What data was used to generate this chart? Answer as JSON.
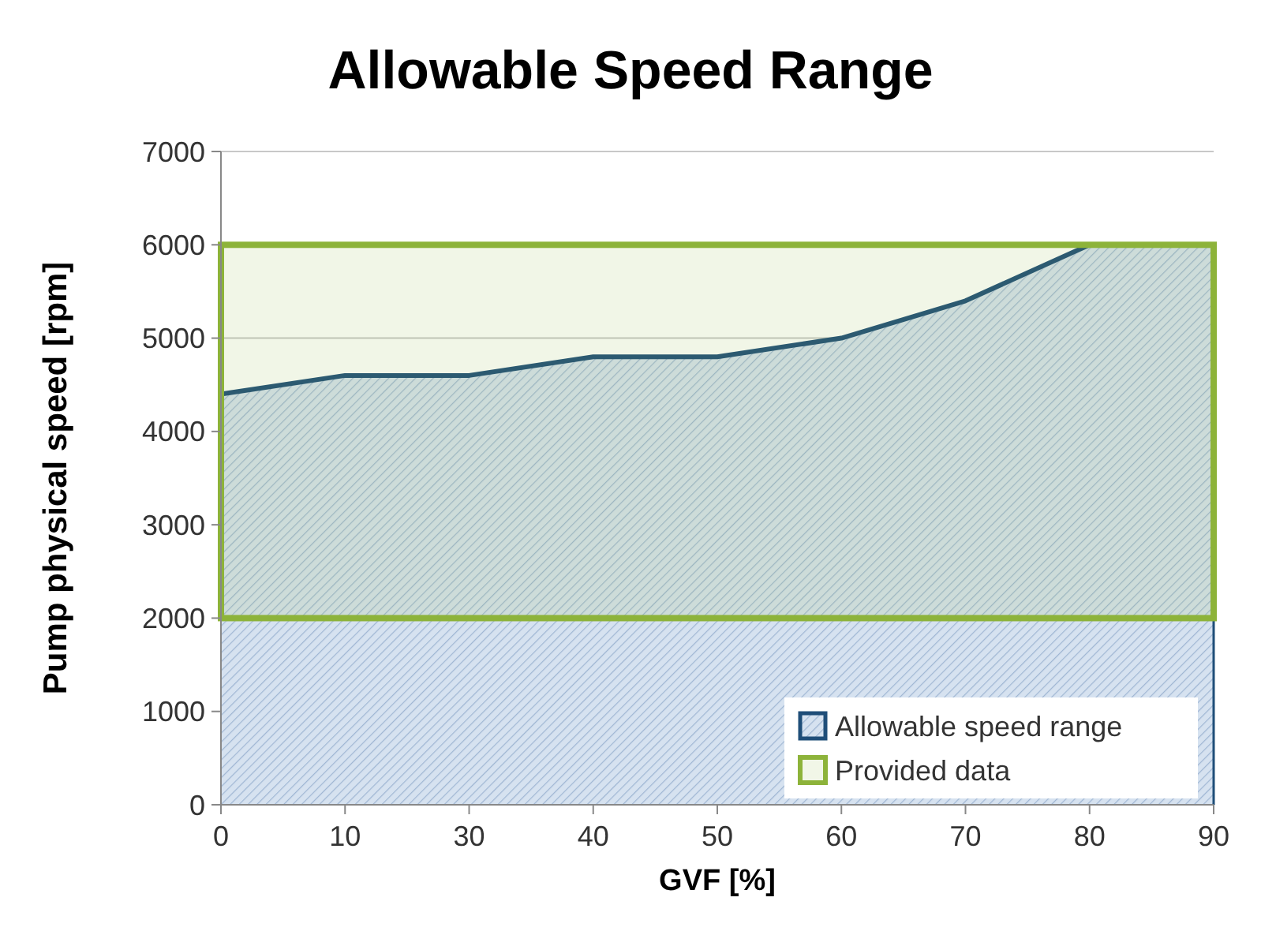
{
  "chart_data": {
    "type": "area",
    "title": "Allowable Speed Range",
    "xlabel": "GVF [%]",
    "ylabel": "Pump physical speed [rpm]",
    "categories": [
      "0",
      "10",
      "30",
      "40",
      "50",
      "60",
      "70",
      "80",
      "90"
    ],
    "series": [
      {
        "name": "Allowable speed range",
        "color": "#1f4e79",
        "values": [
          4400,
          4600,
          4600,
          4800,
          4800,
          5000,
          5400,
          6000,
          6000
        ]
      }
    ],
    "bands": [
      {
        "axis": "y",
        "from": 2000,
        "to": 6000,
        "label": "Provided data",
        "color": "#8db33a"
      }
    ],
    "ylim": [
      0,
      7000
    ],
    "yticks": [
      0,
      1000,
      2000,
      3000,
      4000,
      5000,
      6000,
      7000
    ],
    "grid": "y",
    "legend": "bottom right"
  }
}
